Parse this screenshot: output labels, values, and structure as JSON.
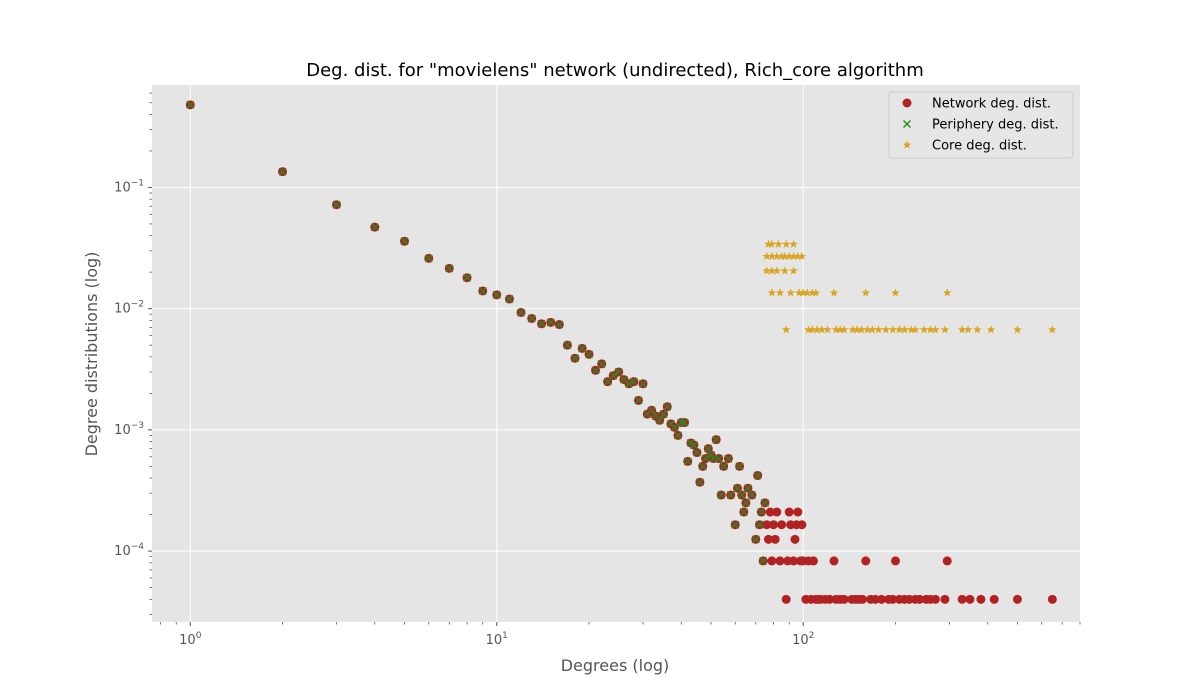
{
  "chart_data": {
    "type": "scatter",
    "title": "Deg. dist. for \"movielens\" network (undirected), Rich_core algorithm",
    "xlabel": "Degrees (log)",
    "ylabel": "Degree distributions (log)",
    "xscale": "log",
    "yscale": "log",
    "xlim": [
      0.75,
      800
    ],
    "ylim": [
      2.6e-05,
      0.7
    ],
    "grid": true,
    "legend_position": "top-right",
    "x_ticks": [
      {
        "value": 1,
        "base": "10",
        "exp": "0"
      },
      {
        "value": 10,
        "base": "10",
        "exp": "1"
      },
      {
        "value": 100,
        "base": "10",
        "exp": "2"
      }
    ],
    "y_ticks": [
      {
        "value": 0.0001,
        "base": "10",
        "exp": "−4"
      },
      {
        "value": 0.001,
        "base": "10",
        "exp": "−3"
      },
      {
        "value": 0.01,
        "base": "10",
        "exp": "−2"
      },
      {
        "value": 0.1,
        "base": "10",
        "exp": "−1"
      }
    ],
    "series": [
      {
        "name": "Network deg. dist.",
        "marker": "circle",
        "color": "#b22222",
        "points": [
          [
            1,
            0.48
          ],
          [
            2,
            0.135
          ],
          [
            3,
            0.072
          ],
          [
            4,
            0.047
          ],
          [
            5,
            0.036
          ],
          [
            6,
            0.026
          ],
          [
            7,
            0.0215
          ],
          [
            8,
            0.018
          ],
          [
            9,
            0.014
          ],
          [
            10,
            0.013
          ],
          [
            11,
            0.012
          ],
          [
            12,
            0.0093
          ],
          [
            13,
            0.0083
          ],
          [
            14,
            0.0075
          ],
          [
            15,
            0.0077
          ],
          [
            16,
            0.0074
          ],
          [
            17,
            0.005
          ],
          [
            18,
            0.0039
          ],
          [
            19,
            0.0047
          ],
          [
            20,
            0.0042
          ],
          [
            21,
            0.0031
          ],
          [
            22,
            0.0035
          ],
          [
            23,
            0.0025
          ],
          [
            24,
            0.0028
          ],
          [
            25,
            0.003
          ],
          [
            26,
            0.0026
          ],
          [
            27,
            0.0024
          ],
          [
            28,
            0.0025
          ],
          [
            29,
            0.00175
          ],
          [
            30,
            0.0024
          ],
          [
            31,
            0.00135
          ],
          [
            32,
            0.00145
          ],
          [
            33,
            0.0013
          ],
          [
            34,
            0.0012
          ],
          [
            35,
            0.00135
          ],
          [
            36,
            0.00155
          ],
          [
            37,
            0.00112
          ],
          [
            38,
            0.00105
          ],
          [
            39,
            0.0009
          ],
          [
            40,
            0.00115
          ],
          [
            41,
            0.00115
          ],
          [
            42,
            0.00055
          ],
          [
            43,
            0.00078
          ],
          [
            44,
            0.00075
          ],
          [
            45,
            0.00065
          ],
          [
            46,
            0.00037
          ],
          [
            47,
            0.0005
          ],
          [
            48,
            0.00058
          ],
          [
            49,
            0.0007
          ],
          [
            50,
            0.00062
          ],
          [
            51,
            0.00058
          ],
          [
            52,
            0.00083
          ],
          [
            53,
            0.00058
          ],
          [
            54,
            0.00029
          ],
          [
            55,
            0.0005
          ],
          [
            57,
            0.00058
          ],
          [
            58,
            0.00029
          ],
          [
            60,
            0.000165
          ],
          [
            61,
            0.00033
          ],
          [
            62,
            0.0005
          ],
          [
            63,
            0.00029
          ],
          [
            64,
            0.00021
          ],
          [
            65,
            0.00025
          ],
          [
            66,
            0.00033
          ],
          [
            68,
            0.00029
          ],
          [
            70,
            0.000125
          ],
          [
            71,
            0.00042
          ],
          [
            72,
            0.000165
          ],
          [
            73,
            0.00021
          ],
          [
            74,
            8.3e-05
          ],
          [
            75,
            0.00025
          ],
          [
            76,
            0.000165
          ],
          [
            77,
            0.000125
          ],
          [
            78,
            0.00021
          ],
          [
            79,
            8.3e-05
          ],
          [
            80,
            0.000165
          ],
          [
            81,
            0.000125
          ],
          [
            82,
            0.00021
          ],
          [
            84,
            8.3e-05
          ],
          [
            85,
            0.000165
          ],
          [
            88,
            4e-05
          ],
          [
            89,
            8.3e-05
          ],
          [
            90,
            0.00021
          ],
          [
            91,
            0.000165
          ],
          [
            93,
            8.3e-05
          ],
          [
            94,
            0.000125
          ],
          [
            95,
            0.000165
          ],
          [
            96,
            0.00021
          ],
          [
            98,
            8.3e-05
          ],
          [
            99,
            0.000165
          ],
          [
            100,
            8.3e-05
          ],
          [
            102,
            4e-05
          ],
          [
            104,
            8.3e-05
          ],
          [
            106,
            4e-05
          ],
          [
            108,
            8.3e-05
          ],
          [
            110,
            4e-05
          ],
          [
            112,
            4e-05
          ],
          [
            114,
            4e-05
          ],
          [
            118,
            4e-05
          ],
          [
            122,
            4e-05
          ],
          [
            126,
            8.3e-05
          ],
          [
            128,
            4e-05
          ],
          [
            132,
            4e-05
          ],
          [
            136,
            4e-05
          ],
          [
            144,
            4e-05
          ],
          [
            148,
            4e-05
          ],
          [
            152,
            4e-05
          ],
          [
            156,
            4e-05
          ],
          [
            160,
            8.3e-05
          ],
          [
            166,
            4e-05
          ],
          [
            172,
            4e-05
          ],
          [
            180,
            4e-05
          ],
          [
            190,
            4e-05
          ],
          [
            196,
            4e-05
          ],
          [
            200,
            8.3e-05
          ],
          [
            206,
            4e-05
          ],
          [
            214,
            4e-05
          ],
          [
            222,
            4e-05
          ],
          [
            232,
            4e-05
          ],
          [
            240,
            4e-05
          ],
          [
            252,
            4e-05
          ],
          [
            260,
            4e-05
          ],
          [
            270,
            4e-05
          ],
          [
            290,
            4e-05
          ],
          [
            295,
            8.3e-05
          ],
          [
            330,
            4e-05
          ],
          [
            350,
            4e-05
          ],
          [
            380,
            4e-05
          ],
          [
            420,
            4e-05
          ],
          [
            500,
            4e-05
          ],
          [
            650,
            4e-05
          ]
        ]
      },
      {
        "name": "Periphery deg. dist.",
        "marker": "x",
        "color": "#228b22",
        "points": [
          [
            1,
            0.48
          ],
          [
            2,
            0.135
          ],
          [
            3,
            0.072
          ],
          [
            4,
            0.047
          ],
          [
            5,
            0.036
          ],
          [
            6,
            0.026
          ],
          [
            7,
            0.0215
          ],
          [
            8,
            0.018
          ],
          [
            9,
            0.014
          ],
          [
            10,
            0.013
          ],
          [
            11,
            0.012
          ],
          [
            12,
            0.0093
          ],
          [
            13,
            0.0083
          ],
          [
            14,
            0.0075
          ],
          [
            15,
            0.0077
          ],
          [
            16,
            0.0074
          ],
          [
            17,
            0.005
          ],
          [
            18,
            0.0039
          ],
          [
            19,
            0.0047
          ],
          [
            20,
            0.0042
          ],
          [
            21,
            0.0031
          ],
          [
            22,
            0.0035
          ],
          [
            23,
            0.0025
          ],
          [
            24,
            0.0028
          ],
          [
            25,
            0.003
          ],
          [
            26,
            0.0026
          ],
          [
            27,
            0.0024
          ],
          [
            28,
            0.0025
          ],
          [
            29,
            0.00175
          ],
          [
            30,
            0.0024
          ],
          [
            31,
            0.00135
          ],
          [
            32,
            0.00145
          ],
          [
            33,
            0.0013
          ],
          [
            34,
            0.0012
          ],
          [
            35,
            0.00135
          ],
          [
            36,
            0.00155
          ],
          [
            37,
            0.00112
          ],
          [
            38,
            0.00105
          ],
          [
            39,
            0.0009
          ],
          [
            40,
            0.00115
          ],
          [
            41,
            0.00115
          ],
          [
            42,
            0.00055
          ],
          [
            43,
            0.00078
          ],
          [
            44,
            0.00075
          ],
          [
            45,
            0.00065
          ],
          [
            46,
            0.00037
          ],
          [
            47,
            0.0005
          ],
          [
            48,
            0.00058
          ],
          [
            49,
            0.0007
          ],
          [
            50,
            0.00062
          ],
          [
            51,
            0.00058
          ],
          [
            52,
            0.00083
          ],
          [
            53,
            0.00058
          ],
          [
            54,
            0.00029
          ],
          [
            55,
            0.0005
          ],
          [
            57,
            0.00058
          ],
          [
            58,
            0.00029
          ],
          [
            60,
            0.000165
          ],
          [
            61,
            0.00033
          ],
          [
            62,
            0.0005
          ],
          [
            63,
            0.00029
          ],
          [
            64,
            0.00021
          ],
          [
            65,
            0.00025
          ],
          [
            66,
            0.00033
          ],
          [
            68,
            0.00029
          ],
          [
            70,
            0.000125
          ],
          [
            71,
            0.00042
          ],
          [
            72,
            0.000165
          ],
          [
            73,
            0.00021
          ],
          [
            74,
            8.3e-05
          ],
          [
            75,
            0.00025
          ]
        ]
      },
      {
        "name": "Core deg. dist.",
        "marker": "star",
        "color": "#daa520",
        "points": [
          [
            77,
            0.034
          ],
          [
            79,
            0.034
          ],
          [
            83,
            0.034
          ],
          [
            88,
            0.034
          ],
          [
            93,
            0.034
          ],
          [
            76,
            0.027
          ],
          [
            79,
            0.027
          ],
          [
            82,
            0.027
          ],
          [
            85,
            0.027
          ],
          [
            87,
            0.027
          ],
          [
            90,
            0.027
          ],
          [
            93,
            0.027
          ],
          [
            96,
            0.027
          ],
          [
            99,
            0.027
          ],
          [
            76,
            0.0205
          ],
          [
            79,
            0.0205
          ],
          [
            82,
            0.0205
          ],
          [
            87,
            0.0205
          ],
          [
            93,
            0.0205
          ],
          [
            79,
            0.0135
          ],
          [
            84,
            0.0135
          ],
          [
            91,
            0.0135
          ],
          [
            97,
            0.0135
          ],
          [
            100,
            0.0135
          ],
          [
            103,
            0.0135
          ],
          [
            107,
            0.0135
          ],
          [
            110,
            0.0135
          ],
          [
            126,
            0.0135
          ],
          [
            160,
            0.0135
          ],
          [
            200,
            0.0135
          ],
          [
            295,
            0.0135
          ],
          [
            88,
            0.0067
          ],
          [
            104,
            0.0067
          ],
          [
            107,
            0.0067
          ],
          [
            111,
            0.0067
          ],
          [
            115,
            0.0067
          ],
          [
            120,
            0.0067
          ],
          [
            128,
            0.0067
          ],
          [
            132,
            0.0067
          ],
          [
            136,
            0.0067
          ],
          [
            145,
            0.0067
          ],
          [
            150,
            0.0067
          ],
          [
            155,
            0.0067
          ],
          [
            162,
            0.0067
          ],
          [
            168,
            0.0067
          ],
          [
            176,
            0.0067
          ],
          [
            186,
            0.0067
          ],
          [
            196,
            0.0067
          ],
          [
            206,
            0.0067
          ],
          [
            214,
            0.0067
          ],
          [
            225,
            0.0067
          ],
          [
            232,
            0.0067
          ],
          [
            248,
            0.0067
          ],
          [
            260,
            0.0067
          ],
          [
            270,
            0.0067
          ],
          [
            290,
            0.0067
          ],
          [
            330,
            0.0067
          ],
          [
            345,
            0.0067
          ],
          [
            370,
            0.0067
          ],
          [
            410,
            0.0067
          ],
          [
            500,
            0.0067
          ],
          [
            650,
            0.0067
          ]
        ]
      }
    ]
  }
}
